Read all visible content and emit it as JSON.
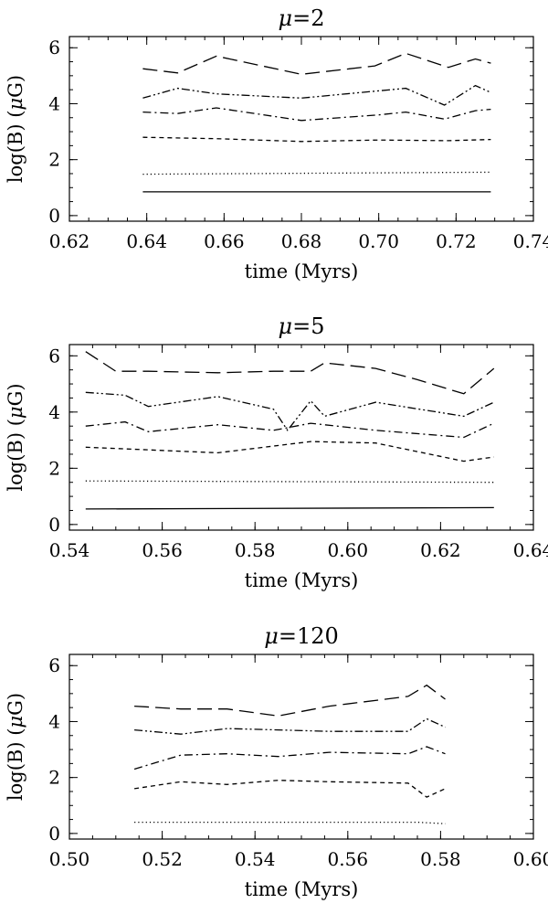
{
  "chart_data": [
    {
      "type": "line",
      "title_symbol": "μ",
      "title_value": "=2",
      "xlabel": "time (Myrs)",
      "ylabel_prefix": "log(B) (",
      "ylabel_symbol": "μ",
      "ylabel_suffix": "G)",
      "xlim": [
        0.62,
        0.74
      ],
      "ylim": [
        -0.2,
        6.4
      ],
      "xticks": [
        0.62,
        0.64,
        0.66,
        0.68,
        0.7,
        0.72,
        0.74
      ],
      "xtick_labels": [
        "0.62",
        "0.64",
        "0.66",
        "0.68",
        "0.70",
        "0.72",
        "0.74"
      ],
      "yticks": [
        0,
        2,
        4,
        6
      ],
      "ytick_labels": [
        "0",
        "2",
        "4",
        "6"
      ],
      "series": [
        {
          "style": "solid",
          "x": [
            0.639,
            0.729
          ],
          "y": [
            0.85,
            0.85
          ]
        },
        {
          "style": "dotted",
          "x": [
            0.639,
            0.729
          ],
          "y": [
            1.48,
            1.55
          ]
        },
        {
          "style": "dashed",
          "x": [
            0.639,
            0.658,
            0.68,
            0.7,
            0.718,
            0.729
          ],
          "y": [
            2.8,
            2.75,
            2.65,
            2.7,
            2.68,
            2.72
          ]
        },
        {
          "style": "dash-dot",
          "x": [
            0.639,
            0.648,
            0.658,
            0.68,
            0.7,
            0.707,
            0.717,
            0.725,
            0.729
          ],
          "y": [
            3.7,
            3.65,
            3.85,
            3.4,
            3.6,
            3.7,
            3.45,
            3.75,
            3.8
          ]
        },
        {
          "style": "dash-dot-dot",
          "x": [
            0.639,
            0.648,
            0.658,
            0.68,
            0.707,
            0.717,
            0.725,
            0.729
          ],
          "y": [
            4.2,
            4.55,
            4.35,
            4.2,
            4.55,
            3.95,
            4.65,
            4.4
          ]
        },
        {
          "style": "long-dash",
          "x": [
            0.639,
            0.648,
            0.658,
            0.68,
            0.699,
            0.707,
            0.718,
            0.725,
            0.729
          ],
          "y": [
            5.25,
            5.1,
            5.7,
            5.05,
            5.35,
            5.8,
            5.3,
            5.6,
            5.45
          ]
        }
      ]
    },
    {
      "type": "line",
      "title_symbol": "μ",
      "title_value": "=5",
      "xlabel": "time (Myrs)",
      "ylabel_prefix": "log(B) (",
      "ylabel_symbol": "μ",
      "ylabel_suffix": "G)",
      "xlim": [
        0.54,
        0.64
      ],
      "ylim": [
        -0.2,
        6.4
      ],
      "xticks": [
        0.54,
        0.56,
        0.58,
        0.6,
        0.62,
        0.64
      ],
      "xtick_labels": [
        "0.54",
        "0.56",
        "0.58",
        "0.60",
        "0.62",
        "0.64"
      ],
      "yticks": [
        0,
        2,
        4,
        6
      ],
      "ytick_labels": [
        "0",
        "2",
        "4",
        "6"
      ],
      "series": [
        {
          "style": "solid",
          "x": [
            0.5435,
            0.6315
          ],
          "y": [
            0.55,
            0.6
          ]
        },
        {
          "style": "dotted",
          "x": [
            0.5435,
            0.6315
          ],
          "y": [
            1.55,
            1.5
          ]
        },
        {
          "style": "dashed",
          "x": [
            0.5435,
            0.572,
            0.592,
            0.606,
            0.625,
            0.6315
          ],
          "y": [
            2.75,
            2.55,
            2.95,
            2.9,
            2.25,
            2.4
          ]
        },
        {
          "style": "dash-dot",
          "x": [
            0.5435,
            0.552,
            0.557,
            0.572,
            0.584,
            0.592,
            0.606,
            0.625,
            0.6315
          ],
          "y": [
            3.5,
            3.65,
            3.3,
            3.55,
            3.35,
            3.6,
            3.35,
            3.1,
            3.6
          ]
        },
        {
          "style": "dash-dot-dot",
          "x": [
            0.5435,
            0.552,
            0.557,
            0.572,
            0.584,
            0.587,
            0.592,
            0.595,
            0.606,
            0.625,
            0.6315
          ],
          "y": [
            4.7,
            4.6,
            4.2,
            4.55,
            4.1,
            3.35,
            4.4,
            3.85,
            4.35,
            3.85,
            4.35
          ]
        },
        {
          "style": "long-dash",
          "x": [
            0.5435,
            0.55,
            0.557,
            0.572,
            0.584,
            0.592,
            0.595,
            0.606,
            0.615,
            0.625,
            0.6315
          ],
          "y": [
            6.15,
            5.45,
            5.45,
            5.4,
            5.45,
            5.45,
            5.75,
            5.55,
            5.15,
            4.65,
            5.55
          ]
        }
      ]
    },
    {
      "type": "line",
      "title_symbol": "μ",
      "title_value": "=120",
      "xlabel": "time (Myrs)",
      "ylabel_prefix": "log(B) (",
      "ylabel_symbol": "μ",
      "ylabel_suffix": "G)",
      "xlim": [
        0.5,
        0.6
      ],
      "ylim": [
        -0.2,
        6.4
      ],
      "xticks": [
        0.5,
        0.52,
        0.54,
        0.56,
        0.58,
        0.6
      ],
      "xtick_labels": [
        "0.50",
        "0.52",
        "0.54",
        "0.56",
        "0.58",
        "0.60"
      ],
      "yticks": [
        0,
        2,
        4,
        6
      ],
      "ytick_labels": [
        "0",
        "2",
        "4",
        "6"
      ],
      "series": [
        {
          "style": "dotted",
          "x": [
            0.514,
            0.575,
            0.581
          ],
          "y": [
            0.4,
            0.4,
            0.35
          ]
        },
        {
          "style": "dashed",
          "x": [
            0.514,
            0.524,
            0.534,
            0.545,
            0.556,
            0.573,
            0.577,
            0.581
          ],
          "y": [
            1.6,
            1.85,
            1.75,
            1.9,
            1.85,
            1.8,
            1.3,
            1.6
          ]
        },
        {
          "style": "dash-dot",
          "x": [
            0.514,
            0.524,
            0.534,
            0.545,
            0.556,
            0.573,
            0.577,
            0.581
          ],
          "y": [
            2.3,
            2.8,
            2.85,
            2.75,
            2.9,
            2.85,
            3.1,
            2.85
          ]
        },
        {
          "style": "dash-dot-dot",
          "x": [
            0.514,
            0.524,
            0.534,
            0.545,
            0.556,
            0.573,
            0.577,
            0.581
          ],
          "y": [
            3.7,
            3.55,
            3.75,
            3.7,
            3.65,
            3.65,
            4.1,
            3.8
          ]
        },
        {
          "style": "long-dash",
          "x": [
            0.514,
            0.524,
            0.534,
            0.545,
            0.556,
            0.573,
            0.577,
            0.581
          ],
          "y": [
            4.55,
            4.45,
            4.45,
            4.2,
            4.55,
            4.9,
            5.3,
            4.8
          ]
        }
      ]
    }
  ]
}
